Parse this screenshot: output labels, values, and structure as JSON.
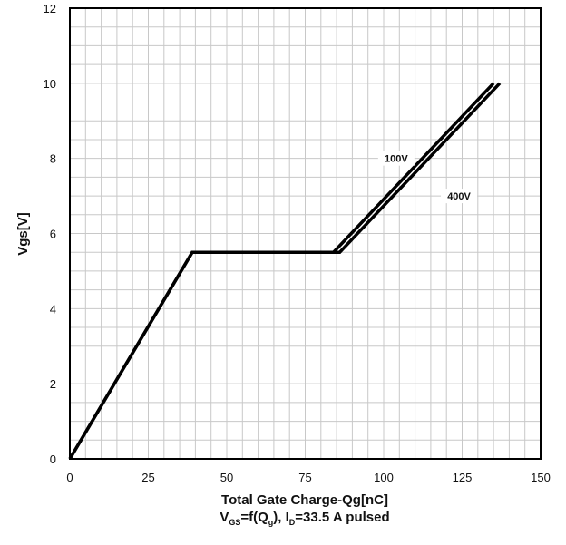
{
  "chart_data": {
    "type": "line",
    "xlabel": "Total Gate Charge-Qg[nC]",
    "ylabel": "Vgs[V]",
    "subtitle": {
      "v": "V",
      "v_sub": "GS",
      "eq": "=f(Q",
      "q_sub": "g",
      "mid": "), I",
      "i_sub": "D",
      "tail": "=33.5 A  pulsed"
    },
    "xlim": [
      0,
      150
    ],
    "ylim": [
      0,
      12
    ],
    "x_ticks": [
      "0",
      "25",
      "50",
      "75",
      "100",
      "125",
      "150"
    ],
    "y_ticks": [
      "0",
      "2",
      "4",
      "6",
      "8",
      "10",
      "12"
    ],
    "grid": true,
    "series": [
      {
        "name": "100V",
        "x": [
          0,
          39,
          84,
          135
        ],
        "y": [
          0,
          5.5,
          5.5,
          10.0
        ]
      },
      {
        "name": "400V",
        "x": [
          0,
          39,
          86,
          137
        ],
        "y": [
          0,
          5.5,
          5.5,
          10.0
        ]
      }
    ],
    "labels": [
      {
        "text": "100V",
        "x": 104,
        "y": 8.0
      },
      {
        "text": "400V",
        "x": 124,
        "y": 7.0
      }
    ]
  }
}
